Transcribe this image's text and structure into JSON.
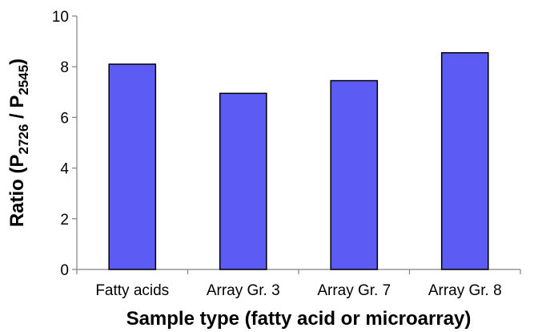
{
  "chart_data": {
    "type": "bar",
    "categories": [
      "Fatty acids",
      "Array Gr. 3",
      "Array Gr. 7",
      "Array Gr. 8"
    ],
    "values": [
      8.1,
      6.95,
      7.45,
      8.55
    ],
    "ylim": [
      0,
      10
    ],
    "yticks": [
      0,
      2,
      4,
      6,
      8,
      10
    ],
    "ytick_labels": [
      "0",
      "2",
      "4",
      "6",
      "8",
      "10"
    ],
    "xlabel": "Sample type (fatty acid or microarray)",
    "ylabel": {
      "prefix": "Ratio (P",
      "sub1": "2726",
      "middle": " / P",
      "sub2": "2545",
      "suffix": ")"
    },
    "bar_color": "#5c5cf5",
    "bar_edge_color": "#000000",
    "grid": false,
    "legend": "none"
  }
}
